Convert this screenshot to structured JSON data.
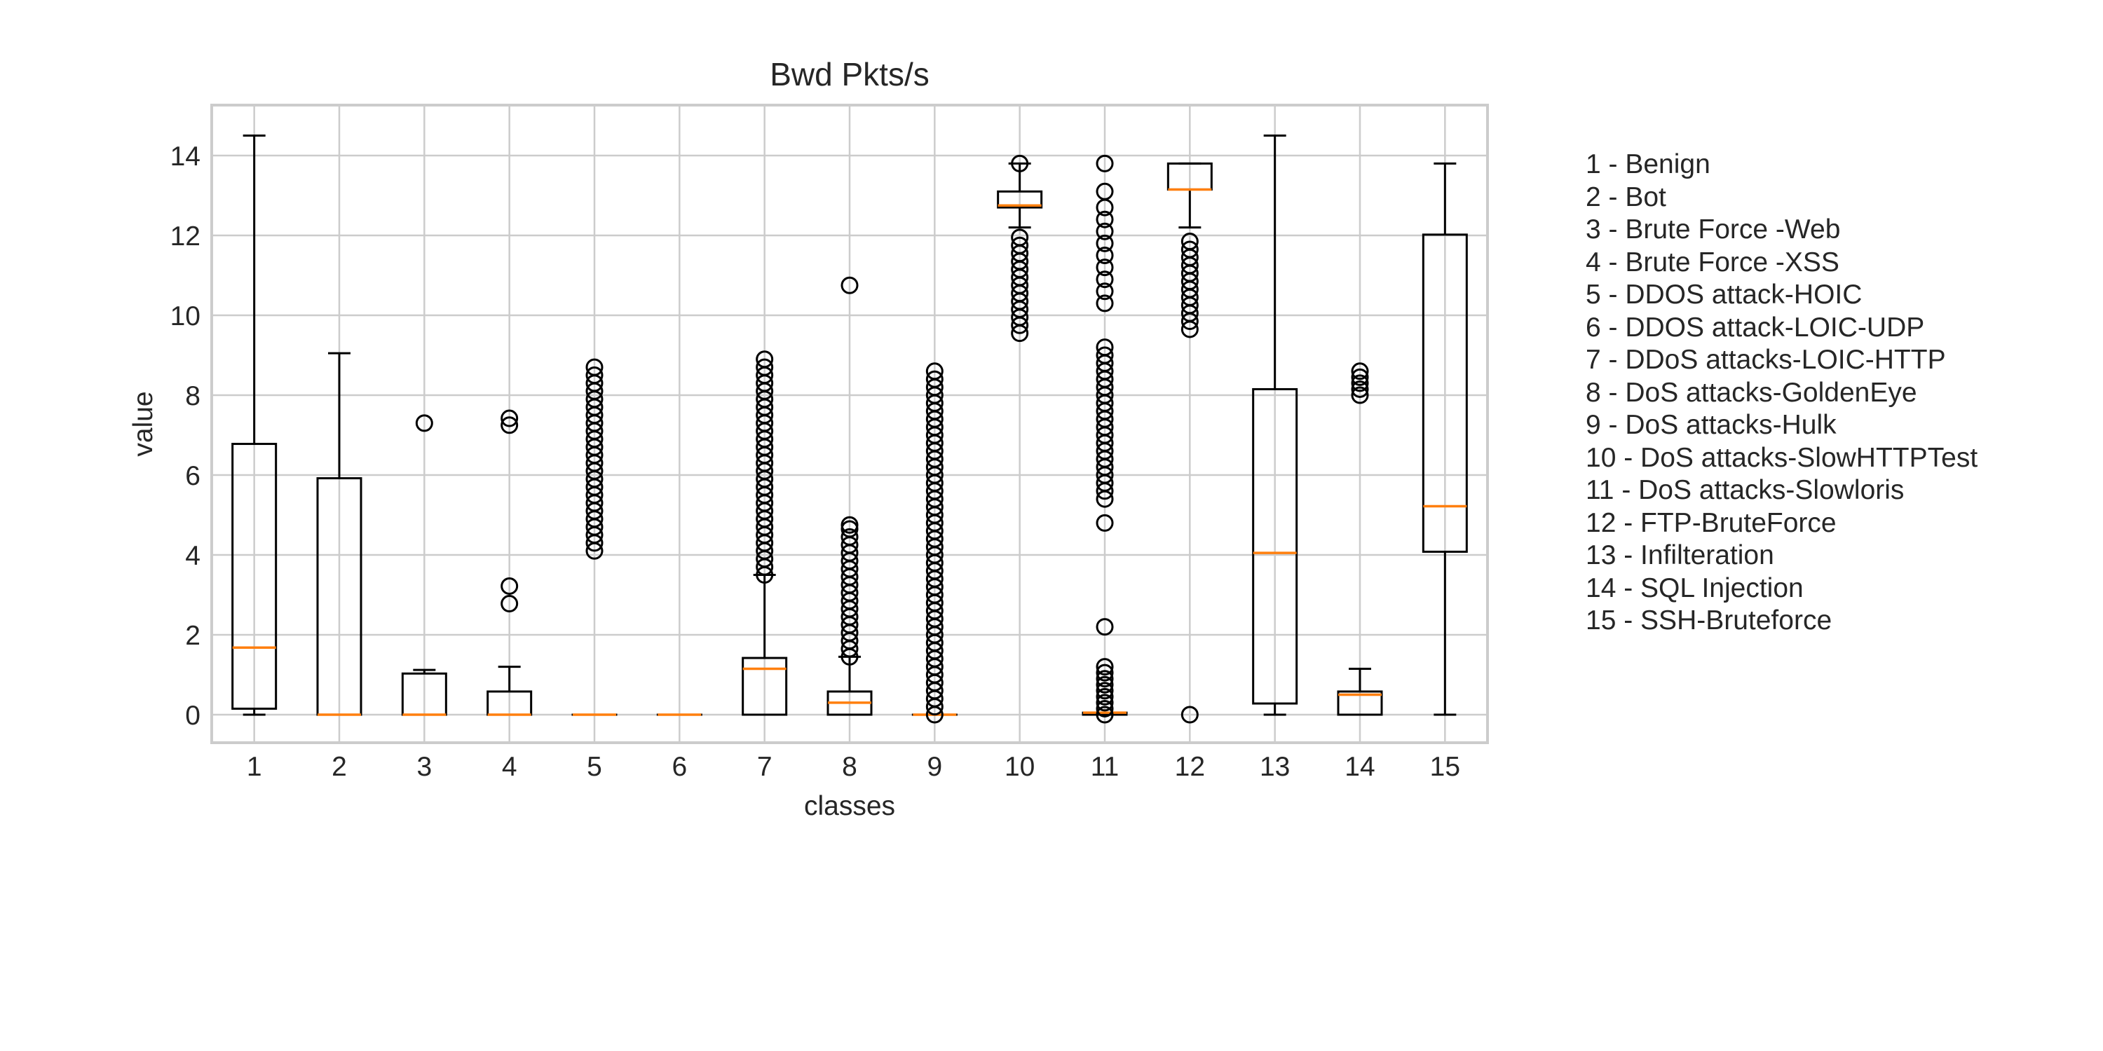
{
  "chart_data": {
    "type": "boxplot",
    "title": "Bwd Pkts/s",
    "xlabel": "classes",
    "ylabel": "value",
    "ylim": [
      -0.7,
      15.2
    ],
    "yticks": [
      0,
      2,
      4,
      6,
      8,
      10,
      12,
      14
    ],
    "grid": true,
    "legend_placement": "right",
    "colors": {
      "box": "#000000",
      "median": "#ff7f0e",
      "grid": "#cccccc",
      "frame": "#cccccc"
    },
    "categories": [
      "1",
      "2",
      "3",
      "4",
      "5",
      "6",
      "7",
      "8",
      "9",
      "10",
      "11",
      "12",
      "13",
      "14",
      "15"
    ],
    "boxes": [
      {
        "class": "1",
        "whislo": 0.0,
        "q1": 0.15,
        "med": 1.68,
        "q3": 6.78,
        "whishi": 14.5,
        "fliers": []
      },
      {
        "class": "2",
        "whislo": 0.0,
        "q1": 0.0,
        "med": 0.0,
        "q3": 5.92,
        "whishi": 9.05,
        "fliers": []
      },
      {
        "class": "3",
        "whislo": 0.0,
        "q1": 0.0,
        "med": 0.0,
        "q3": 1.03,
        "whishi": 1.12,
        "fliers": [
          7.3
        ]
      },
      {
        "class": "4",
        "whislo": 0.0,
        "q1": 0.0,
        "med": 0.0,
        "q3": 0.58,
        "whishi": 1.2,
        "fliers": [
          2.78,
          3.22,
          7.25,
          7.42
        ]
      },
      {
        "class": "5",
        "whislo": 0.0,
        "q1": 0.0,
        "med": 0.0,
        "q3": 0.0,
        "whishi": 0.0,
        "fliers": [
          4.1,
          4.3,
          4.5,
          4.7,
          4.9,
          5.1,
          5.3,
          5.5,
          5.7,
          5.9,
          6.1,
          6.3,
          6.5,
          6.7,
          6.9,
          7.1,
          7.3,
          7.5,
          7.7,
          7.9,
          8.1,
          8.3,
          8.5,
          8.7
        ]
      },
      {
        "class": "6",
        "whislo": 0.0,
        "q1": 0.0,
        "med": 0.0,
        "q3": 0.0,
        "whishi": 0.0,
        "fliers": []
      },
      {
        "class": "7",
        "whislo": 0.0,
        "q1": 0.0,
        "med": 1.15,
        "q3": 1.42,
        "whishi": 3.5,
        "fliers": [
          3.5,
          3.7,
          3.9,
          4.1,
          4.3,
          4.5,
          4.7,
          4.9,
          5.1,
          5.3,
          5.5,
          5.7,
          5.9,
          6.1,
          6.3,
          6.5,
          6.7,
          6.9,
          7.1,
          7.3,
          7.5,
          7.7,
          7.9,
          8.1,
          8.3,
          8.5,
          8.7,
          8.9
        ]
      },
      {
        "class": "8",
        "whislo": 0.0,
        "q1": 0.0,
        "med": 0.3,
        "q3": 0.58,
        "whishi": 1.45,
        "fliers": [
          1.45,
          1.65,
          1.85,
          2.05,
          2.25,
          2.45,
          2.65,
          2.85,
          3.05,
          3.25,
          3.45,
          3.65,
          3.85,
          4.05,
          4.25,
          4.45,
          4.65,
          4.75,
          10.75
        ]
      },
      {
        "class": "9",
        "whislo": 0.0,
        "q1": 0.0,
        "med": 0.0,
        "q3": 0.0,
        "whishi": 0.0,
        "fliers": [
          0.0,
          0.2,
          0.4,
          0.6,
          0.8,
          1.0,
          1.2,
          1.4,
          1.6,
          1.8,
          2.0,
          2.2,
          2.4,
          2.6,
          2.8,
          3.0,
          3.2,
          3.4,
          3.6,
          3.8,
          4.0,
          4.2,
          4.4,
          4.6,
          4.8,
          5.0,
          5.2,
          5.4,
          5.6,
          5.8,
          6.0,
          6.2,
          6.4,
          6.6,
          6.8,
          7.0,
          7.2,
          7.4,
          7.6,
          7.8,
          8.0,
          8.2,
          8.4,
          8.6
        ]
      },
      {
        "class": "10",
        "whislo": 12.2,
        "q1": 12.7,
        "med": 12.75,
        "q3": 13.1,
        "whishi": 13.8,
        "fliers": [
          9.55,
          9.75,
          9.95,
          10.15,
          10.35,
          10.55,
          10.75,
          10.95,
          11.15,
          11.35,
          11.55,
          11.75,
          11.95,
          13.8
        ]
      },
      {
        "class": "11",
        "whislo": 0.0,
        "q1": 0.0,
        "med": 0.05,
        "q3": 0.05,
        "whishi": 0.05,
        "fliers": [
          0.0,
          0.15,
          0.3,
          0.45,
          0.6,
          0.75,
          0.9,
          1.05,
          1.2,
          2.2,
          4.8,
          5.4,
          5.6,
          5.8,
          6.0,
          6.2,
          6.4,
          6.6,
          6.8,
          7.0,
          7.2,
          7.4,
          7.6,
          7.8,
          8.0,
          8.2,
          8.4,
          8.6,
          8.8,
          9.0,
          9.2,
          10.3,
          10.6,
          10.9,
          11.2,
          11.5,
          11.8,
          12.1,
          12.4,
          12.7,
          13.1,
          13.8
        ]
      },
      {
        "class": "12",
        "whislo": 12.2,
        "q1": 13.15,
        "med": 13.15,
        "q3": 13.8,
        "whishi": 13.8,
        "fliers": [
          0.0,
          9.65,
          9.85,
          10.05,
          10.25,
          10.45,
          10.65,
          10.85,
          11.05,
          11.25,
          11.45,
          11.65,
          11.85
        ]
      },
      {
        "class": "13",
        "whislo": 0.0,
        "q1": 0.28,
        "med": 4.05,
        "q3": 8.15,
        "whishi": 14.5,
        "fliers": []
      },
      {
        "class": "14",
        "whislo": 0.0,
        "q1": 0.0,
        "med": 0.5,
        "q3": 0.58,
        "whishi": 1.15,
        "fliers": [
          8.0,
          8.15,
          8.3,
          8.45,
          8.6
        ]
      },
      {
        "class": "15",
        "whislo": 0.0,
        "q1": 4.08,
        "med": 5.22,
        "q3": 12.02,
        "whishi": 13.8,
        "fliers": []
      }
    ],
    "legend": [
      "1 - Benign",
      "2 - Bot",
      "3 - Brute Force -Web",
      "4 - Brute Force -XSS",
      "5 - DDOS attack-HOIC",
      "6 - DDOS attack-LOIC-UDP",
      "7 - DDoS attacks-LOIC-HTTP",
      "8 - DoS attacks-GoldenEye",
      "9 - DoS attacks-Hulk",
      "10 - DoS attacks-SlowHTTPTest",
      "11 - DoS attacks-Slowloris",
      "12 - FTP-BruteForce",
      "13 - Infilteration",
      "14 - SQL Injection",
      "15 - SSH-Bruteforce"
    ]
  }
}
